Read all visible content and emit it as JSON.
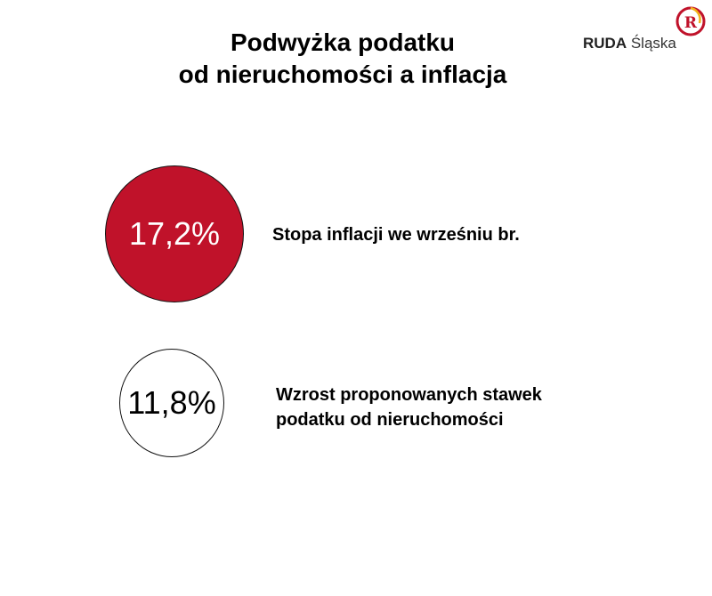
{
  "slide": {
    "title_line1": "Podwyżka podatku",
    "title_line2": "od nieruchomości a inflacja"
  },
  "logo": {
    "brand_bold": "RUDA",
    "brand_light": "Śląska",
    "mark_letter": "R",
    "mark_icon": "ruda-slaska-emblem-icon"
  },
  "stats": [
    {
      "value": "17,2%",
      "label": "Stopa inflacji we wrześniu br.",
      "fill_color": "#c0122a"
    },
    {
      "value": "11,8%",
      "label": "Wzrost proponowanych stawek podatku od nieruchomości",
      "fill_color": "#ffffff"
    }
  ],
  "colors": {
    "accent_red": "#c0122a",
    "text": "#000000"
  }
}
